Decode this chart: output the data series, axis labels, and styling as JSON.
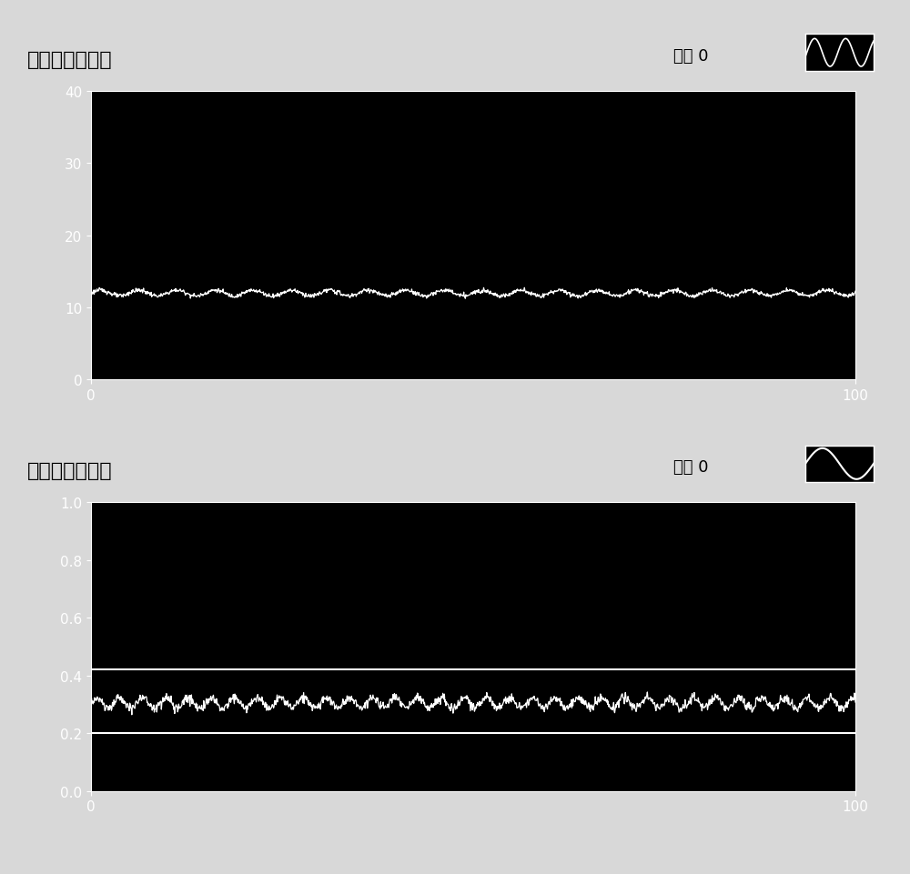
{
  "title1": "穿透束流波形图",
  "title2": "穿透束流波形图",
  "legend_text": "曲线 0",
  "bg_color": "#000000",
  "line_color1": "#ffffff",
  "line_color2": "#ffffff",
  "hline_color": "#ffffff",
  "ax_tick_color": "#ffffff",
  "ax_spine_color": "#ffffff",
  "xlim": [
    0,
    100
  ],
  "ylim1": [
    0,
    40
  ],
  "ylim2": [
    0,
    1
  ],
  "yticks1": [
    0,
    10,
    20,
    30,
    40
  ],
  "yticks2": [
    0.0,
    0.2,
    0.4,
    0.6,
    0.8,
    1.0
  ],
  "signal1_mean": 12.0,
  "signal2_mean": 0.305,
  "hline1": 0.42,
  "hline2": 0.2,
  "title_fontsize": 16,
  "legend_fontsize": 13,
  "tick_fontsize": 11,
  "fig_bg": "#d8d8d8"
}
